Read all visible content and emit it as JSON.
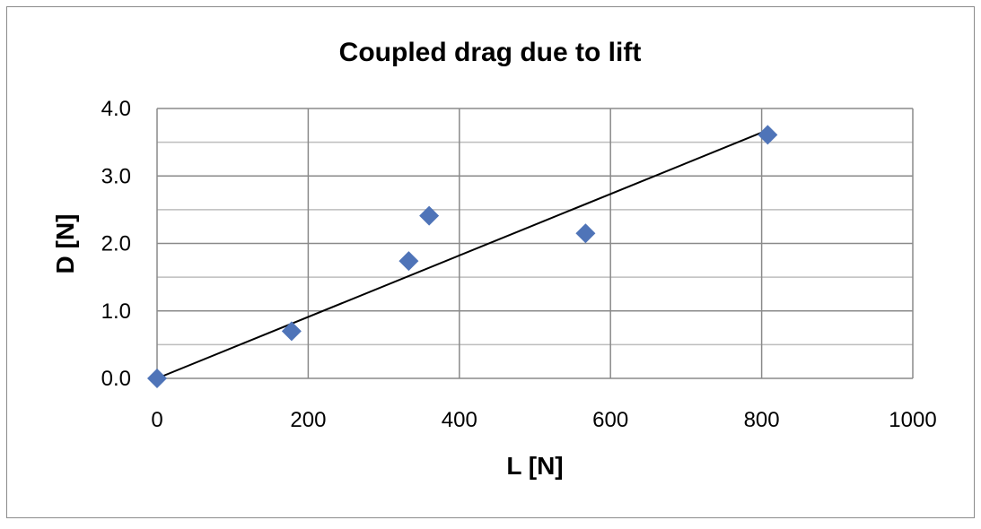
{
  "chart_data": {
    "type": "scatter",
    "title": "Coupled drag due to lift",
    "xlabel": "L [N]",
    "ylabel": "D [N]",
    "xlim": [
      0,
      1000
    ],
    "ylim": [
      0,
      4
    ],
    "x_ticks": [
      "0",
      "200",
      "400",
      "600",
      "800",
      "1000"
    ],
    "y_ticks": [
      "0.0",
      "1.0",
      "2.0",
      "3.0",
      "4.0"
    ],
    "grid": true,
    "legend": "none",
    "series": [
      {
        "marker": "diamond",
        "color": "#4f74b8",
        "points": [
          {
            "x": 0,
            "y": 0.0
          },
          {
            "x": 178,
            "y": 0.7
          },
          {
            "x": 333,
            "y": 1.74
          },
          {
            "x": 360,
            "y": 2.41
          },
          {
            "x": 567,
            "y": 2.15
          },
          {
            "x": 808,
            "y": 3.61
          }
        ]
      }
    ],
    "trendline": {
      "type": "linear",
      "color": "#000000",
      "x": [
        0,
        808
      ],
      "y": [
        0.0,
        3.68
      ]
    }
  }
}
